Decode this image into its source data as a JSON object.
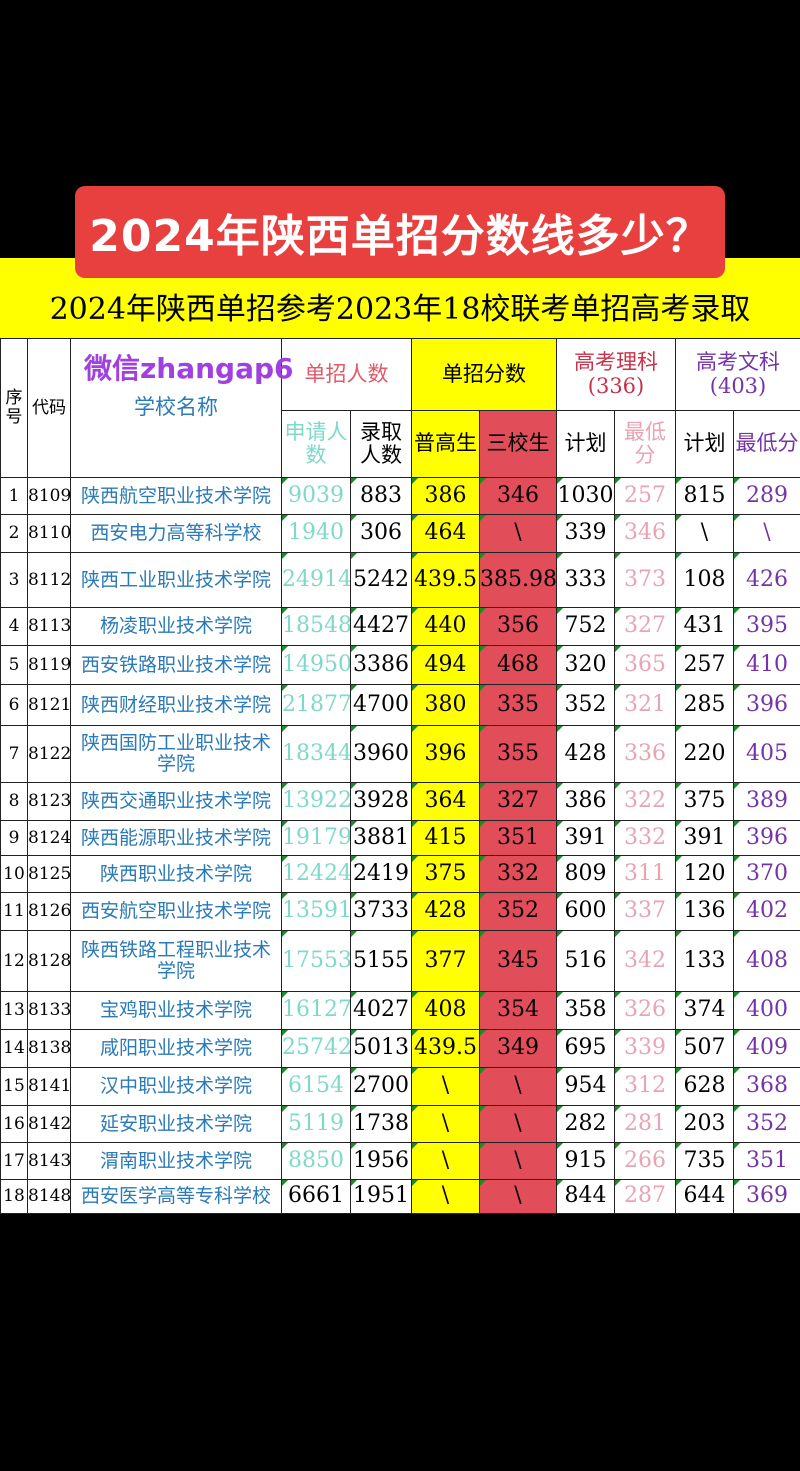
{
  "banner_title": "2024年陕西单招分数线多少？",
  "subtitle": "2024年陕西单招参考2023年18校联考单招高考录取",
  "watermark": "微信zhangap6",
  "headers": {
    "seq": "序号",
    "code": "代码",
    "school": "学校名称",
    "enroll_group": "单招人数",
    "score_group": "单招分数",
    "sci_group": "高考理科",
    "sci_line": "(336)",
    "arts_group": "高考文科",
    "arts_line": "(403)",
    "apply": "申请人数",
    "admit": "录取人数",
    "general": "普高生",
    "three_school": "三校生",
    "sci_plan": "计划",
    "sci_min": "最低分",
    "arts_plan": "计划",
    "arts_min": "最低分"
  },
  "colors": {
    "yellow": "#ffff00",
    "red": "#e24d5a",
    "banner": "#e8403f",
    "school": "#2a7ab8",
    "apply": "#7fd9c8",
    "sci_min": "#e9a3b3",
    "arts_min": "#7434a8"
  },
  "rows": [
    [
      "1",
      "8109",
      "陕西航空职业技术学院",
      "9039",
      "883",
      "386",
      "346",
      "1030",
      "257",
      "815",
      "289"
    ],
    [
      "2",
      "8110",
      "西安电力高等科学校",
      "1940",
      "306",
      "464",
      "\\",
      "339",
      "346",
      "\\",
      "\\"
    ],
    [
      "3",
      "8112",
      "陕西工业职业技术学院",
      "24914",
      "5242",
      "439.5",
      "385.98",
      "333",
      "373",
      "108",
      "426"
    ],
    [
      "4",
      "8113",
      "杨凌职业技术学院",
      "18548",
      "4427",
      "440",
      "356",
      "752",
      "327",
      "431",
      "395"
    ],
    [
      "5",
      "8119",
      "西安铁路职业技术学院",
      "14950",
      "3386",
      "494",
      "468",
      "320",
      "365",
      "257",
      "410"
    ],
    [
      "6",
      "8121",
      "陕西财经职业技术学院",
      "21877",
      "4700",
      "380",
      "335",
      "352",
      "321",
      "285",
      "396"
    ],
    [
      "7",
      "8122",
      "陕西国防工业职业技术学院",
      "18344",
      "3960",
      "396",
      "355",
      "428",
      "336",
      "220",
      "405"
    ],
    [
      "8",
      "8123",
      "陕西交通职业技术学院",
      "13922",
      "3928",
      "364",
      "327",
      "386",
      "322",
      "375",
      "389"
    ],
    [
      "9",
      "8124",
      "陕西能源职业技术学院",
      "19179",
      "3881",
      "415",
      "351",
      "391",
      "332",
      "391",
      "396"
    ],
    [
      "10",
      "8125",
      "陕西职业技术学院",
      "12424",
      "2419",
      "375",
      "332",
      "809",
      "311",
      "120",
      "370"
    ],
    [
      "11",
      "8126",
      "西安航空职业技术学院",
      "13591",
      "3733",
      "428",
      "352",
      "600",
      "337",
      "136",
      "402"
    ],
    [
      "12",
      "8128",
      "陕西铁路工程职业技术学院",
      "17553",
      "5155",
      "377",
      "345",
      "516",
      "342",
      "133",
      "408"
    ],
    [
      "13",
      "8133",
      "宝鸡职业技术学院",
      "16127",
      "4027",
      "408",
      "354",
      "358",
      "326",
      "374",
      "400"
    ],
    [
      "14",
      "8138",
      "咸阳职业技术学院",
      "25742",
      "5013",
      "439.5",
      "349",
      "695",
      "339",
      "507",
      "409"
    ],
    [
      "15",
      "8141",
      "汉中职业技术学院",
      "6154",
      "2700",
      "\\",
      "\\",
      "954",
      "312",
      "628",
      "368"
    ],
    [
      "16",
      "8142",
      "延安职业技术学院",
      "5119",
      "1738",
      "\\",
      "\\",
      "282",
      "281",
      "203",
      "352"
    ],
    [
      "17",
      "8143",
      "渭南职业技术学院",
      "8850",
      "1956",
      "\\",
      "\\",
      "915",
      "266",
      "735",
      "351"
    ],
    [
      "18",
      "8148",
      "西安医学高等专科学校",
      "6661",
      "1951",
      "\\",
      "\\",
      "844",
      "287",
      "644",
      "369"
    ]
  ]
}
